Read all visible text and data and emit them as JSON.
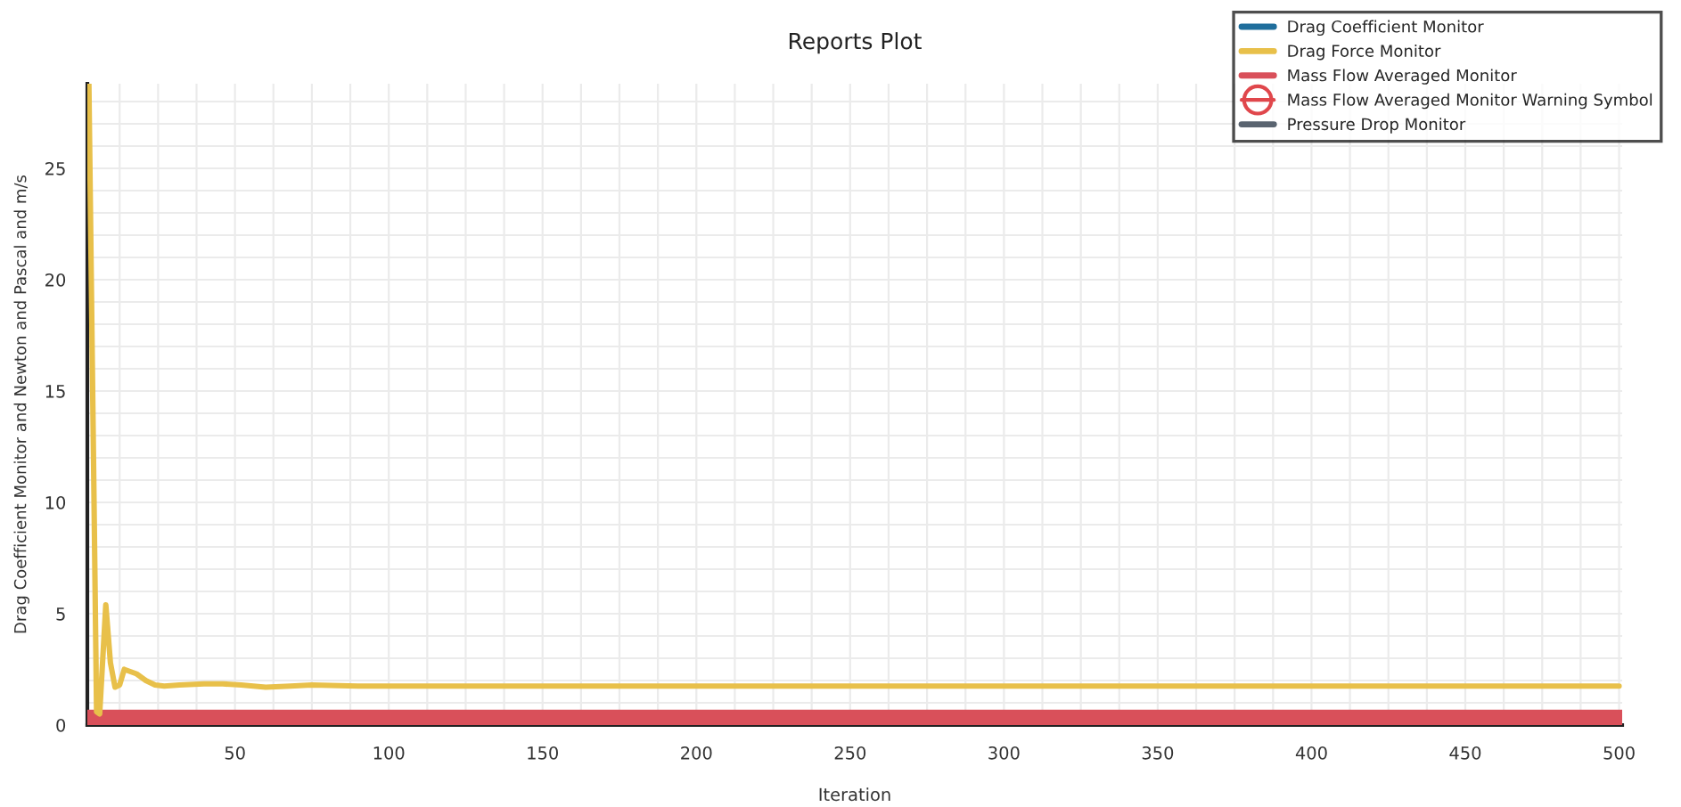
{
  "chart_data": {
    "type": "line",
    "title": "Reports Plot",
    "xlabel": "Iteration",
    "ylabel": "Drag Coefficient Monitor and Newton and Pascal and m/s",
    "xlim": [
      2,
      501
    ],
    "ylim": [
      0,
      28.8
    ],
    "xticks": [
      50,
      100,
      150,
      200,
      250,
      300,
      350,
      400,
      450,
      500
    ],
    "yticks": [
      0,
      5,
      10,
      15,
      20,
      25
    ],
    "grid": true,
    "legend": "top right",
    "marker": "none",
    "series": [
      {
        "name": "Drag Coefficient Monitor",
        "color": "#1f6e9c"
      },
      {
        "name": "Drag Force Monitor",
        "color": "#e8c04a",
        "x": [
          2.5,
          4,
          5,
          6,
          8,
          9.5,
          11,
          12.5,
          14,
          16,
          18,
          21,
          24,
          27,
          32,
          40,
          46,
          52,
          60,
          68,
          75,
          90,
          150,
          250,
          350,
          450,
          500
        ],
        "values": [
          28.8,
          12,
          0.6,
          0.5,
          5.4,
          2.8,
          1.7,
          1.8,
          2.5,
          2.4,
          2.3,
          2.0,
          1.8,
          1.75,
          1.8,
          1.85,
          1.85,
          1.8,
          1.7,
          1.75,
          1.8,
          1.75,
          1.75,
          1.75,
          1.75,
          1.75,
          1.75
        ]
      },
      {
        "name": "Mass Flow Averaged Monitor",
        "color": "#d9505a",
        "x": [
          2,
          501
        ],
        "values": [
          0.3,
          0.3
        ]
      },
      {
        "name": "Mass Flow Averaged Monitor Warning Symbol",
        "type": "scatter",
        "marker": "circle",
        "color": "#e0474c"
      },
      {
        "name": "Pressure Drop Monitor",
        "color": "#5a6470"
      }
    ]
  }
}
